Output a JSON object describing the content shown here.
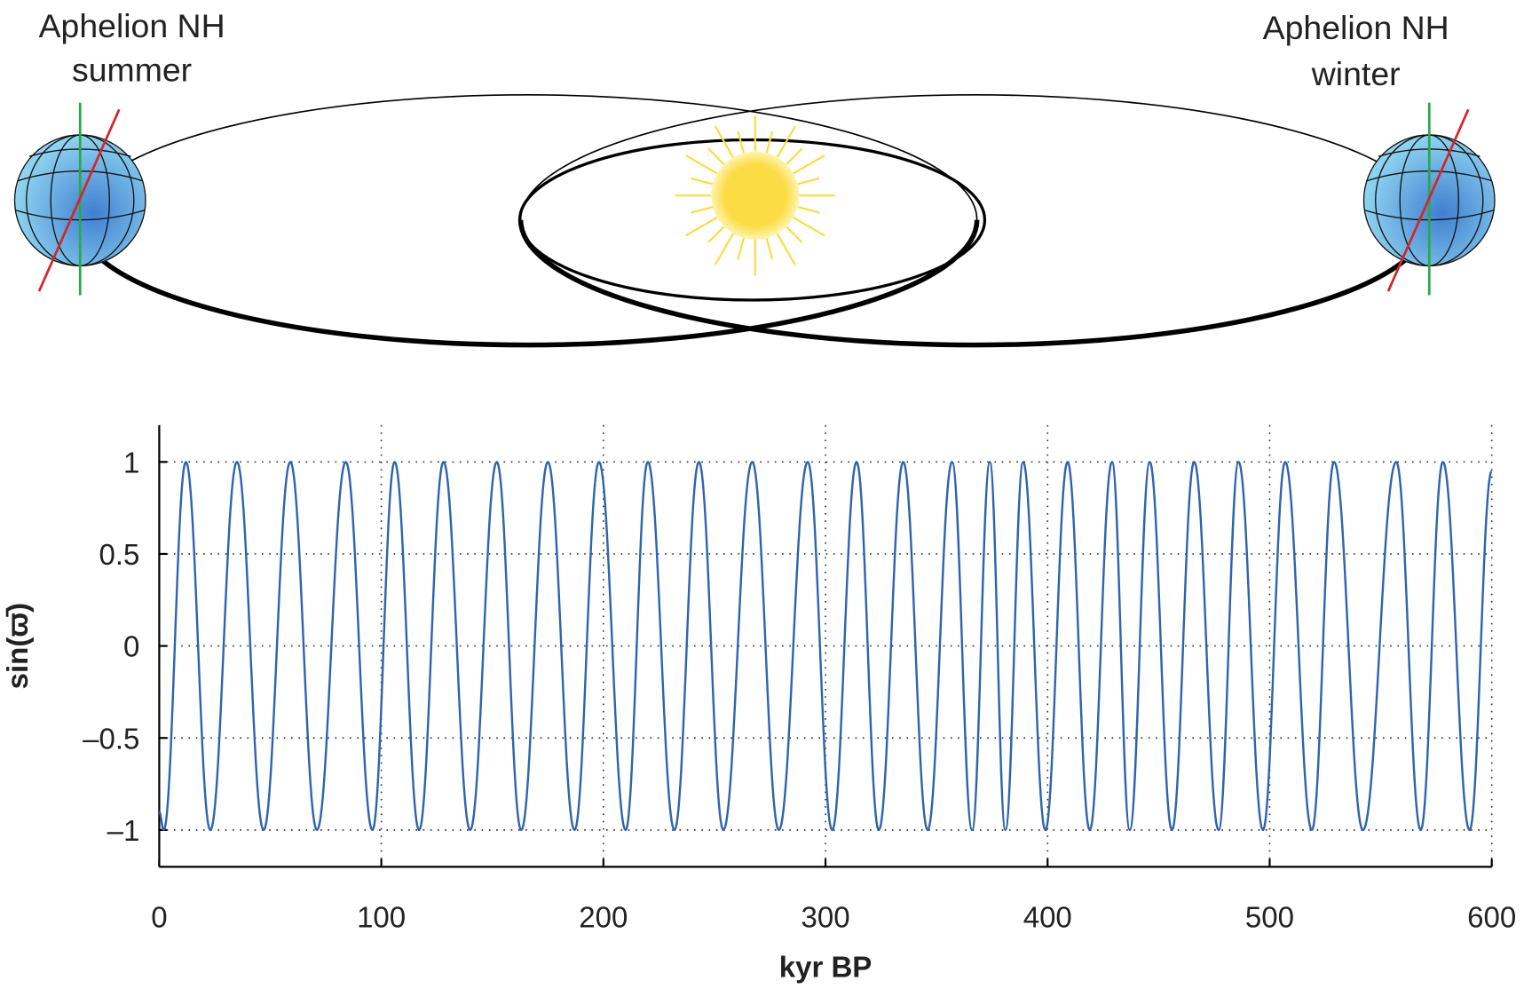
{
  "diagram": {
    "left_label": [
      "Aphelion NH",
      "summer"
    ],
    "right_label": [
      "Aphelion NH",
      "winter"
    ]
  },
  "chart_data": {
    "type": "line",
    "ylabel": "sin(ϖ̄)",
    "xlabel": "kyr BP",
    "xlim": [
      0,
      600
    ],
    "xticks": [
      0,
      100,
      200,
      300,
      400,
      500,
      600
    ],
    "ylim": [
      -1.2,
      1.2
    ],
    "yticks": [
      {
        "value": -1,
        "label": "–1"
      },
      {
        "value": -0.5,
        "label": "–0.5"
      },
      0,
      0.5,
      1
    ],
    "grid": true,
    "series": [
      {
        "color": "#2f64ad",
        "x": [
          0,
          2,
          12,
          23,
          35,
          47,
          59,
          71,
          84,
          96,
          106,
          117,
          128,
          140,
          152,
          163,
          175,
          187,
          198,
          210,
          220,
          232,
          243,
          254,
          267,
          279,
          292,
          303,
          314,
          324,
          335,
          346,
          357,
          366,
          374,
          381,
          389,
          399,
          409,
          419,
          429,
          437,
          446,
          456,
          466,
          477,
          486,
          497,
          507,
          519,
          529,
          542,
          557,
          568,
          578,
          590,
          600
        ],
        "values": [
          -0.9,
          -1,
          1,
          -1,
          1,
          -1,
          1,
          -1,
          1,
          -1,
          1,
          -1,
          1,
          -1,
          1,
          -1,
          1,
          -1,
          1,
          -1,
          1,
          -1,
          1,
          -1,
          1,
          -1,
          1,
          -1,
          1,
          -1,
          1,
          -1,
          1,
          -1,
          1,
          -1,
          1,
          -1,
          1,
          -1,
          1,
          -1,
          1,
          -1,
          1,
          -1,
          1,
          -1,
          1,
          -1,
          1,
          -1,
          1,
          -1,
          1,
          -1,
          0.95
        ]
      }
    ]
  }
}
